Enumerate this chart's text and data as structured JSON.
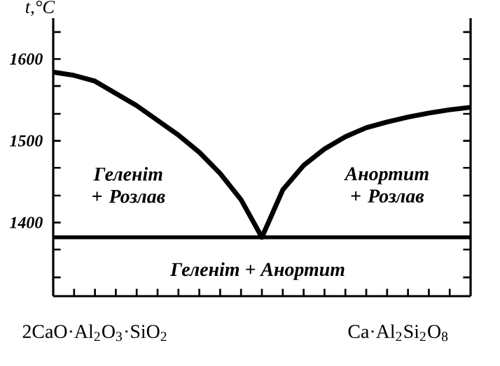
{
  "chart_data": {
    "type": "line",
    "ylabel": "t,°C",
    "ylim": [
      1310,
      1650
    ],
    "categories": [
      null,
      null,
      null,
      null,
      null,
      null,
      null,
      null,
      null,
      null,
      null,
      null,
      null,
      null,
      null,
      null,
      null,
      null,
      null,
      null,
      null
    ],
    "yticks": [
      {
        "value": 1333,
        "label": null
      },
      {
        "value": 1367,
        "label": null
      },
      1400,
      {
        "value": 1433,
        "label": null
      },
      {
        "value": 1467,
        "label": null
      },
      1500,
      {
        "value": 1533,
        "label": null
      },
      {
        "value": 1567,
        "label": null
      },
      1600,
      {
        "value": 1633,
        "label": null
      }
    ],
    "tick_labels": "y",
    "marker": "none",
    "line_style": "solid",
    "series": [
      {
        "color": "#000000",
        "values": [
          1584,
          1580,
          1573,
          1558,
          1543,
          1525,
          1507,
          1486,
          1460,
          1428,
          1382,
          1440,
          1470,
          1490,
          1505,
          1516,
          1523,
          1529,
          1534,
          1538,
          1541
        ]
      }
    ],
    "ref_lines": [
      {
        "axis": "y",
        "value": 1382,
        "color": "#000000"
      }
    ],
    "annotations": [
      "Геленіт + Розлав",
      "Анортит + Розлав",
      "Геленіт + Анортит",
      "2CaO·Al$_{2}$O$_{3}$·SiO$_{2}$",
      "Ca·Al$_{2}$Si$_{2}$O$_{8}$"
    ]
  }
}
